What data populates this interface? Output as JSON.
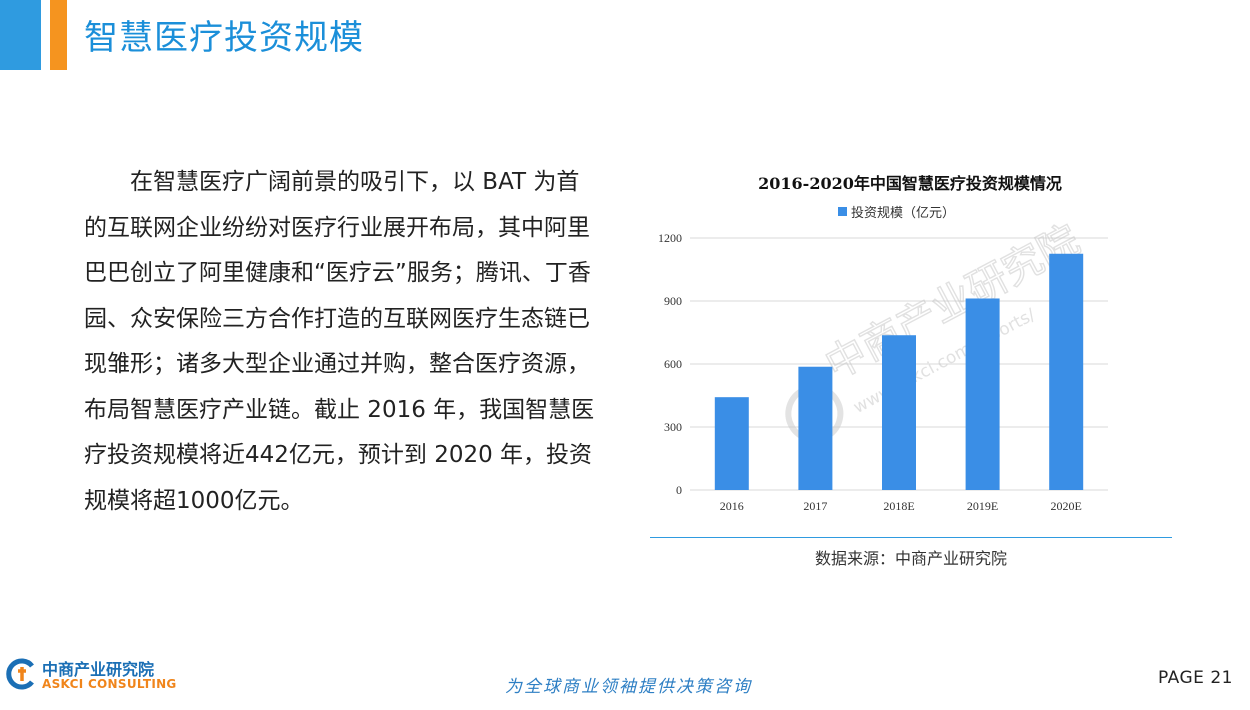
{
  "header": {
    "title": "智慧医疗投资规模"
  },
  "body": {
    "paragraph": "在智慧医疗广阔前景的吸引下，以 BAT 为首的互联网企业纷纷对医疗行业展开布局，其中阿里巴巴创立了阿里健康和“医疗云”服务；腾讯、丁香园、众安保险三方合作打造的互联网医疗生态链已现雏形；诸多大型企业通过并购，整合医疗资源，布局智慧医疗产业链。截止 2016 年，我国智慧医疗投资规模将近442亿元，预计到 2020 年，投资规模将超1000亿元。"
  },
  "chart_data": {
    "type": "bar",
    "title": "2016-2020年中国智慧医疗投资规模情况",
    "categories": [
      "2016",
      "2017",
      "2018E",
      "2019E",
      "2020E"
    ],
    "series": [
      {
        "name": "投资规模（亿元）",
        "values": [
          442,
          587,
          737,
          912,
          1125
        ]
      }
    ],
    "ylim": [
      0,
      1200
    ],
    "yticks": [
      0,
      300,
      600,
      900,
      1200
    ],
    "grid": true,
    "legend": "top",
    "color": "#3a8ee6"
  },
  "watermark": {
    "cn": "中商产业研究院",
    "url": "www.askci.com/reports/"
  },
  "footer": {
    "source": "数据来源：中商产业研究院",
    "logo_cn": "中商产业研究院",
    "logo_en": "ASKCI CONSULTING",
    "slogan": "为全球商业领袖提供决策咨询",
    "page": "PAGE 21"
  },
  "colors": {
    "accent_blue": "#2f9be0",
    "accent_orange": "#f5941f",
    "bar": "#3a8ee6"
  }
}
